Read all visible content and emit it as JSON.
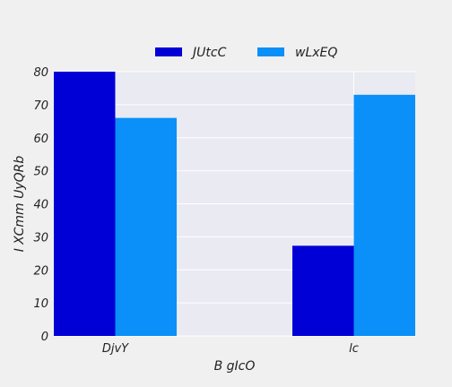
{
  "chart_data": {
    "type": "bar",
    "categories": [
      "DjvY",
      "lc"
    ],
    "series": [
      {
        "name": "JUtcC",
        "values": [
          80,
          27.3
        ],
        "color": "#0000d6"
      },
      {
        "name": "wLxEQ",
        "values": [
          66,
          73
        ],
        "color": "#0a90f8"
      }
    ],
    "xlabel": "B gIcO",
    "ylabel": "I XCmm UyQRb",
    "ylim": [
      0,
      80
    ],
    "yticks": [
      0,
      10,
      20,
      30,
      40,
      50,
      60,
      70,
      80
    ],
    "grid": true,
    "legend_position": "top-center",
    "background_color": "#f0f0f0",
    "plot_background_color": "#e9eaf2",
    "grid_color": "#ffffff"
  }
}
